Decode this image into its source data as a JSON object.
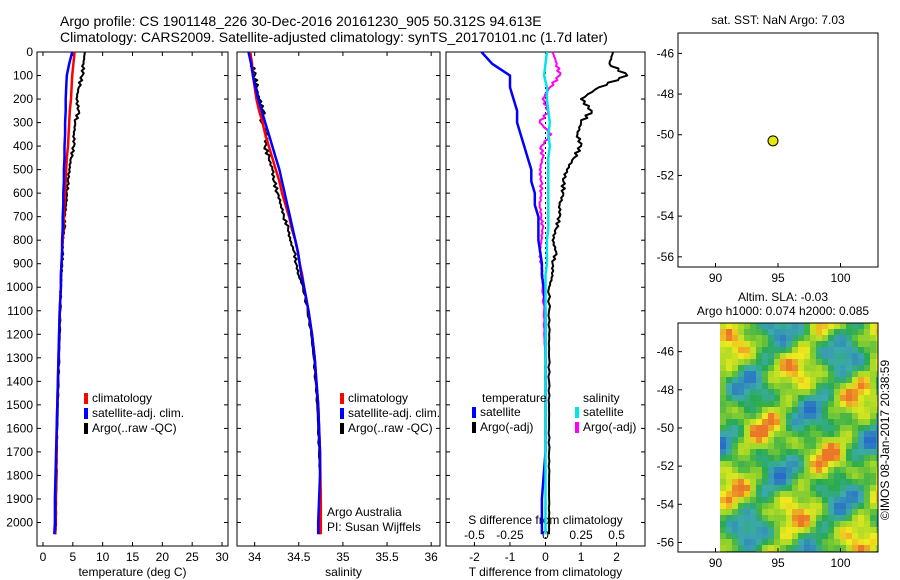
{
  "header": {
    "title_line1": "Argo profile: CS 1901148_226 30-Dec-2016 20161230_905 50.312S 94.613E",
    "title_line2": "Climatology: CARS2009. Satellite-adjusted climatology: synTS_20170101.nc (1.7d later)"
  },
  "colors": {
    "climatology": "#ff0000",
    "satellite": "#0000ff",
    "argo": "#000000",
    "sal_satellite": "#00e5e5",
    "sal_argo": "#ff00ff",
    "marker": "#e6e600"
  },
  "chart_data": [
    {
      "type": "line",
      "panel": "temperature",
      "xlabel": "temperature (deg C)",
      "ylabel": "",
      "xlim": [
        -1,
        31
      ],
      "ylim": [
        2100,
        0
      ],
      "xticks": [
        "0",
        "5",
        "10",
        "15",
        "20",
        "25",
        "30"
      ],
      "yticks": [
        "0",
        "100",
        "200",
        "300",
        "400",
        "500",
        "600",
        "700",
        "800",
        "900",
        "1000",
        "1100",
        "1200",
        "1300",
        "1400",
        "1500",
        "1600",
        "1700",
        "1800",
        "1900",
        "2000"
      ],
      "legend": [
        "climatology",
        "satellite-adj. clim.",
        "Argo(..raw -QC)"
      ],
      "depth": [
        0,
        50,
        100,
        150,
        200,
        250,
        300,
        350,
        400,
        450,
        500,
        550,
        600,
        650,
        700,
        750,
        800,
        850,
        900,
        950,
        1000,
        1100,
        1200,
        1300,
        1400,
        1500,
        1600,
        1700,
        1800,
        1900,
        2000,
        2050
      ],
      "series": [
        {
          "name": "climatology",
          "values": [
            5.3,
            5.1,
            4.9,
            4.8,
            4.7,
            4.5,
            4.4,
            4.3,
            4.2,
            4.0,
            3.9,
            3.8,
            3.7,
            3.6,
            3.5,
            3.4,
            3.3,
            3.2,
            3.1,
            3.0,
            3.0,
            2.8,
            2.7,
            2.6,
            2.5,
            2.4,
            2.3,
            2.3,
            2.2,
            2.1,
            2.1,
            2.0
          ]
        },
        {
          "name": "satellite-adj. clim.",
          "values": [
            4.9,
            4.4,
            4.0,
            3.9,
            3.8,
            3.8,
            3.7,
            3.7,
            3.6,
            3.6,
            3.5,
            3.5,
            3.4,
            3.4,
            3.3,
            3.3,
            3.2,
            3.2,
            3.1,
            3.0,
            3.0,
            2.8,
            2.7,
            2.6,
            2.5,
            2.4,
            2.3,
            2.2,
            2.1,
            2.0,
            2.0,
            1.9
          ]
        },
        {
          "name": "Argo(..raw -QC)",
          "values": [
            7.0,
            6.8,
            6.6,
            6.0,
            5.6,
            6.0,
            5.4,
            5.2,
            5.2,
            4.7,
            4.4,
            4.2,
            4.0,
            3.9,
            3.6,
            3.6,
            3.3,
            3.3,
            3.2,
            3.1,
            3.0,
            2.9,
            2.8,
            2.7,
            2.6,
            2.5,
            2.4,
            2.3,
            2.3,
            2.2,
            2.2,
            2.1
          ]
        }
      ]
    },
    {
      "type": "line",
      "panel": "salinity",
      "xlabel": "salinity",
      "ylabel": "",
      "xlim": [
        33.8,
        36.1
      ],
      "ylim": [
        2100,
        0
      ],
      "xticks": [
        "34",
        "34.5",
        "35",
        "35.5",
        "36"
      ],
      "legend": [
        "climatology",
        "satellite-adj. clim.",
        "Argo(..raw -QC)"
      ],
      "annotation": [
        "Argo Australia",
        "PI: Susan Wijffels"
      ],
      "depth": [
        0,
        50,
        100,
        150,
        200,
        250,
        300,
        350,
        400,
        450,
        500,
        550,
        600,
        650,
        700,
        750,
        800,
        850,
        900,
        950,
        1000,
        1100,
        1200,
        1300,
        1400,
        1500,
        1600,
        1700,
        1800,
        1900,
        2000,
        2050
      ],
      "series": [
        {
          "name": "climatology",
          "values": [
            33.95,
            33.97,
            33.98,
            34.0,
            34.02,
            34.05,
            34.09,
            34.12,
            34.16,
            34.2,
            34.24,
            34.28,
            34.31,
            34.35,
            34.39,
            34.42,
            34.46,
            34.49,
            34.51,
            34.54,
            34.56,
            34.61,
            34.65,
            34.68,
            34.7,
            34.72,
            34.73,
            34.74,
            34.745,
            34.75,
            34.75,
            34.75
          ]
        },
        {
          "name": "satellite-adj. clim.",
          "values": [
            33.93,
            33.96,
            33.98,
            34.01,
            34.04,
            34.08,
            34.12,
            34.16,
            34.2,
            34.24,
            34.28,
            34.31,
            34.34,
            34.37,
            34.4,
            34.43,
            34.46,
            34.49,
            34.51,
            34.53,
            34.56,
            34.61,
            34.65,
            34.68,
            34.7,
            34.72,
            34.73,
            34.74,
            34.74,
            34.73,
            34.72,
            34.72
          ]
        },
        {
          "name": "Argo(..raw -QC)",
          "values": [
            33.95,
            33.97,
            34.0,
            34.02,
            34.05,
            34.1,
            34.08,
            34.14,
            34.12,
            34.16,
            34.2,
            34.22,
            34.26,
            34.3,
            34.33,
            34.38,
            34.4,
            34.45,
            34.47,
            34.5,
            34.55,
            34.6,
            34.64,
            34.67,
            34.69,
            34.71,
            34.72,
            34.73,
            34.74,
            34.74,
            34.74,
            34.74
          ]
        }
      ]
    },
    {
      "type": "line",
      "panel": "difference",
      "xlabel": "T difference from climatology",
      "xlabel2": "S difference from climatology",
      "xlim": [
        -2.8,
        2.8
      ],
      "ylim": [
        2100,
        0
      ],
      "xticks": [
        "-2",
        "-1",
        "0",
        "1",
        "2"
      ],
      "xticks_top": [
        "-0.5",
        "-0.25",
        "0",
        "0.25",
        "0.5"
      ],
      "legend_groups": [
        "temperature",
        "salinity"
      ],
      "legend": [
        "satellite",
        "Argo(-adj)",
        "satellite",
        "Argo(-adj)"
      ],
      "depth": [
        0,
        50,
        100,
        150,
        200,
        250,
        300,
        350,
        400,
        450,
        500,
        550,
        600,
        650,
        700,
        750,
        800,
        850,
        900,
        950,
        1000,
        1100,
        1200,
        1300,
        1400,
        1500,
        1600,
        1700,
        1800,
        1900,
        2000,
        2050
      ],
      "series": [
        {
          "name": "temperature satellite",
          "values": [
            -1.8,
            -1.5,
            -1.0,
            -1.0,
            -0.9,
            -0.8,
            -0.8,
            -0.7,
            -0.6,
            -0.5,
            -0.4,
            -0.4,
            -0.3,
            -0.3,
            -0.2,
            -0.2,
            -0.2,
            -0.15,
            -0.1,
            -0.1,
            -0.05,
            0,
            0,
            0,
            0,
            0,
            0,
            0,
            -0.05,
            -0.1,
            -0.1,
            -0.1
          ]
        },
        {
          "name": "temperature Argo(-adj)",
          "values": [
            1.9,
            1.8,
            2.3,
            1.5,
            1.0,
            1.3,
            1.0,
            0.9,
            1.0,
            0.8,
            0.6,
            0.5,
            0.5,
            0.4,
            0.4,
            0.3,
            0.2,
            0.3,
            0.2,
            0.2,
            0.1,
            0.1,
            0.1,
            0.1,
            0.1,
            0.1,
            0.1,
            0.1,
            0.1,
            0.1,
            0.1,
            0.1
          ]
        },
        {
          "name": "salinity satellite",
          "values": [
            0.01,
            0.0,
            -0.01,
            0.01,
            0.01,
            0.02,
            0.03,
            0.02,
            0.03,
            0.02,
            0.02,
            0.02,
            0.02,
            0.02,
            0.02,
            0.02,
            0.01,
            0.01,
            0.01,
            0.0,
            0.0,
            0.0,
            0.0,
            0.0,
            0.0,
            0.0,
            0.0,
            0.0,
            0.0,
            0.0,
            0.0,
            0.0
          ]
        },
        {
          "name": "salinity Argo(-adj)",
          "values": [
            0.05,
            0.08,
            0.1,
            0.03,
            -0.02,
            0.02,
            -0.04,
            0.04,
            -0.03,
            -0.02,
            -0.04,
            -0.03,
            -0.03,
            -0.04,
            -0.03,
            -0.02,
            -0.03,
            -0.04,
            -0.03,
            -0.02,
            -0.02,
            -0.01,
            -0.01,
            0.0,
            0.0,
            0.0,
            0.0,
            0.0,
            0.0,
            0.0,
            0.0,
            0.0
          ]
        }
      ]
    },
    {
      "type": "scatter",
      "panel": "map_sst",
      "title": "sat. SST: NaN Argo: 7.03",
      "xlim": [
        87,
        103
      ],
      "ylim": [
        -56.5,
        -45
      ],
      "xticks": [
        "90",
        "95",
        "100"
      ],
      "yticks": [
        "-46",
        "-48",
        "-50",
        "-52",
        "-54",
        "-56"
      ],
      "points": [
        {
          "x": 94.6,
          "y": -50.3
        }
      ]
    },
    {
      "type": "heatmap",
      "panel": "map_sla",
      "title_line1": "Altim. SLA: -0.03",
      "title_line2": "Argo h1000: 0.074 h2000: 0.085",
      "xlim": [
        87,
        103
      ],
      "ylim": [
        -56.5,
        -44.5
      ],
      "xticks": [
        "90",
        "95",
        "100"
      ],
      "yticks": [
        "-46",
        "-48",
        "-50",
        "-52",
        "-54",
        "-56"
      ],
      "watermark": "©IMOS 08-Jan-2017 20:38:59"
    }
  ]
}
